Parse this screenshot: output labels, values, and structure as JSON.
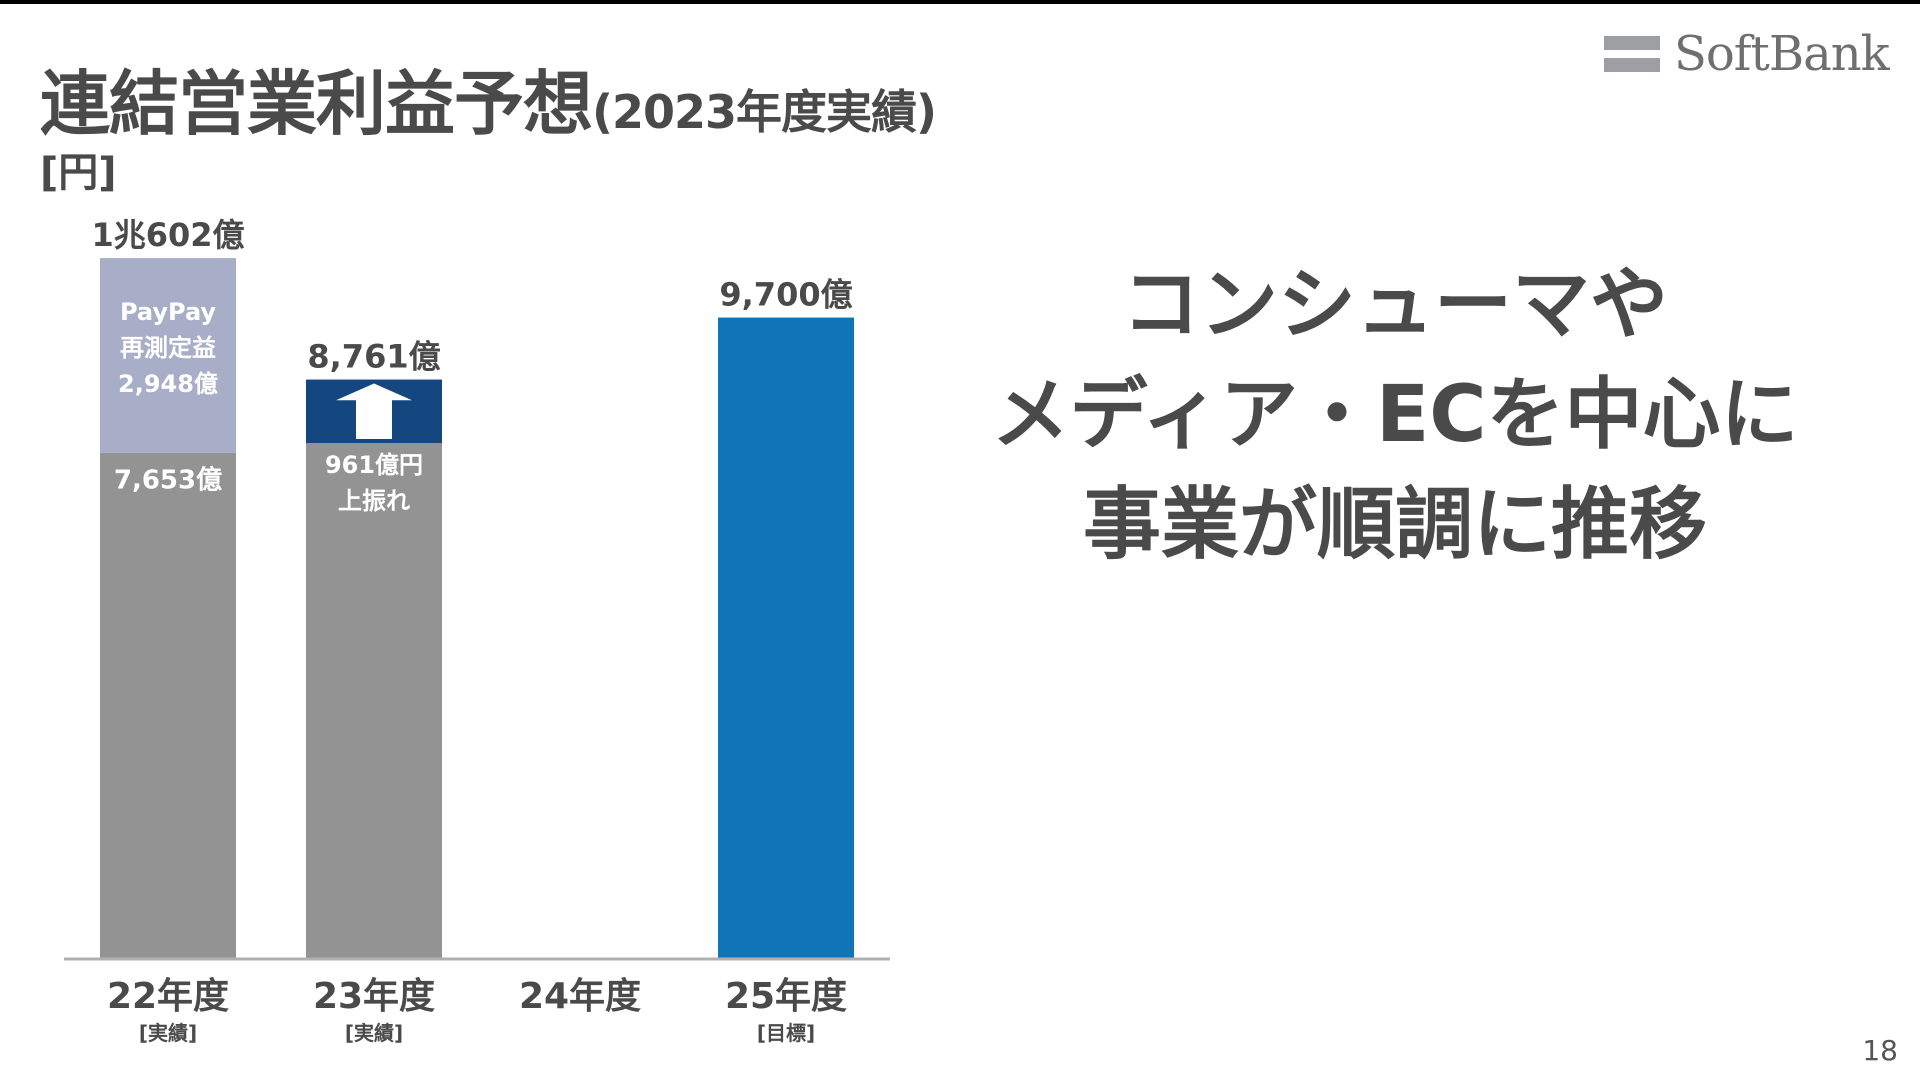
{
  "slide": {
    "title": "連結営業利益予想",
    "title_paren": "(2023年度実績)",
    "unit_label": "[円]",
    "page_number": "18",
    "logo_text": "SoftBank"
  },
  "headline": {
    "lines": [
      "コンシューマや",
      "メディア・ECを中心に",
      "事業が順調に推移"
    ]
  },
  "colors": {
    "gray_bar": "#939393",
    "paypay_segment": "#a9aec8",
    "upside_segment": "#14477f",
    "target_bar": "#0f74b8",
    "text": "#4a4a4a",
    "axis": "#b0b0b0"
  },
  "chart_data": {
    "type": "bar",
    "stacked": true,
    "ylim": [
      0,
      10602
    ],
    "categories": [
      {
        "label": "22年度",
        "sublabel": "[実績]"
      },
      {
        "label": "23年度",
        "sublabel": "[実績]"
      },
      {
        "label": "24年度",
        "sublabel": ""
      },
      {
        "label": "25年度",
        "sublabel": "[目標]"
      }
    ],
    "bars": [
      {
        "total_label": "1兆602億",
        "segments": [
          {
            "value": 7653,
            "label": "7,653億",
            "color": "#939393"
          },
          {
            "value": 2948,
            "label_lines": [
              "PayPay",
              "再測定益",
              "2,948億"
            ],
            "color": "#a9aec8"
          }
        ]
      },
      {
        "total_label": "8,761億",
        "segments": [
          {
            "value": 7800,
            "label_lines": [
              "961億円",
              "上振れ"
            ],
            "color": "#939393"
          },
          {
            "value": 961,
            "color": "#14477f",
            "arrow": true
          }
        ]
      },
      {
        "total_label": "",
        "segments": []
      },
      {
        "total_label": "9,700億",
        "segments": [
          {
            "value": 9700,
            "color": "#0f74b8"
          }
        ]
      }
    ]
  }
}
